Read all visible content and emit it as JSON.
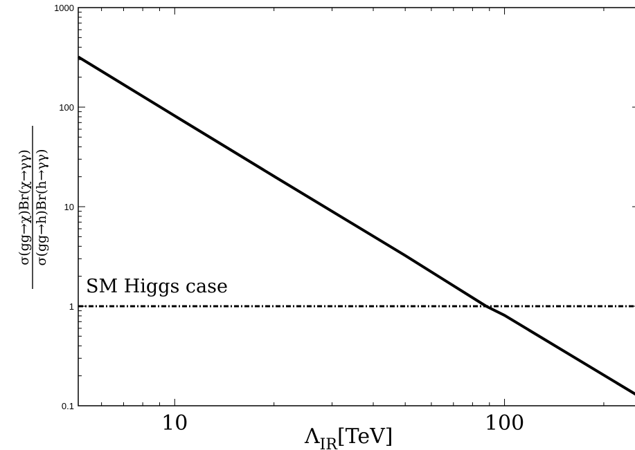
{
  "chart_data": {
    "type": "line",
    "xlabel": "Λ_IR[TeV]",
    "xlabel_main": "Λ",
    "xlabel_sub": "IR",
    "xlabel_unit": "[TeV]",
    "ylabel": "σ(gg→χ)Br(χ→γγ) / σ(gg→h)Br(h→γγ)",
    "ylabel_numerator": "σ(gg→χ)Br(χ→γγ)",
    "ylabel_denominator": "σ(gg→h)Br(h→γγ)",
    "xscale": "log",
    "yscale": "log",
    "xlim": [
      5.1,
      256
    ],
    "ylim": [
      0.1,
      1000
    ],
    "grid": false,
    "xticks": [
      10,
      100
    ],
    "xtick_labels": [
      "10",
      "100"
    ],
    "yticks": [
      0.1,
      1,
      10,
      100,
      1000
    ],
    "ytick_labels": [
      "0.1",
      "1",
      "10",
      "100",
      "1000"
    ],
    "series": [
      {
        "style": "solid",
        "x": [
          5.1,
          10,
          20,
          50,
          88,
          100,
          256
        ],
        "y": [
          320,
          81.8,
          20.2,
          3.23,
          1.0,
          0.81,
          0.124
        ]
      },
      {
        "style": "dashed",
        "x": [
          5.1,
          256
        ],
        "y": [
          1,
          1
        ]
      }
    ],
    "annotations": [
      {
        "text": "SM Higgs case",
        "x": 5.5,
        "y": 1.58
      }
    ]
  }
}
